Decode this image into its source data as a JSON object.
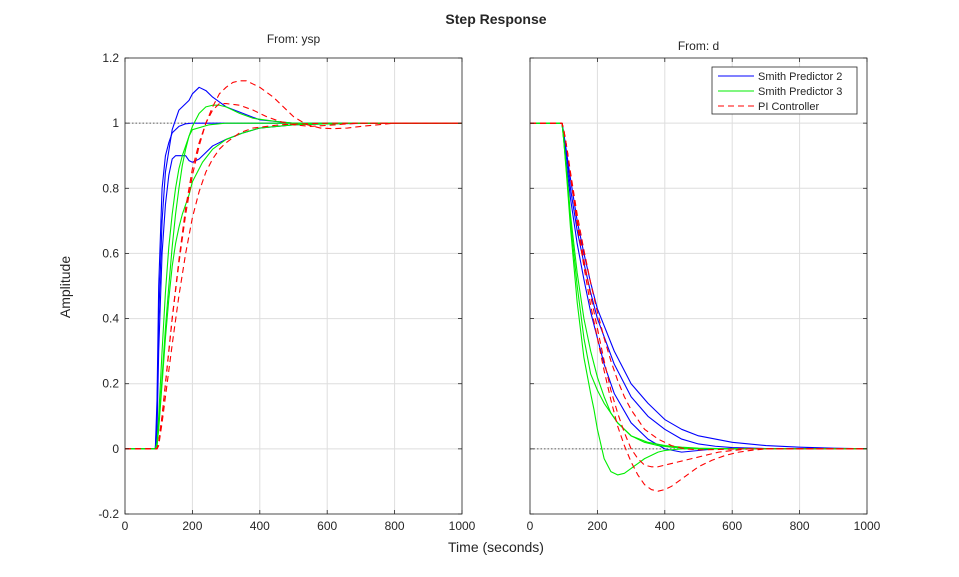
{
  "figure": {
    "title": "Step Response",
    "xlabel": "Time (seconds)",
    "ylabel": "Amplitude"
  },
  "colors": {
    "smith2": "#0000ff",
    "smith3": "#00ee00",
    "pi": "#ff0000",
    "grid": "#dedede",
    "axis": "#262626"
  },
  "chart_data": [
    {
      "type": "line",
      "panel": "left",
      "subtitle": "From: ysp",
      "xlim": [
        0,
        1000
      ],
      "ylim": [
        -0.2,
        1.2
      ],
      "xticks": [
        0,
        200,
        400,
        600,
        800,
        1000
      ],
      "yticks": [
        -0.2,
        0,
        0.2,
        0.4,
        0.6,
        0.8,
        1,
        1.2
      ],
      "grid": true,
      "reference_line": 1,
      "series": [
        {
          "group": "smith2",
          "style": "solid",
          "x": [
            0,
            90,
            95,
            100,
            110,
            120,
            130,
            140,
            160,
            180,
            200,
            300,
            400,
            600,
            1000
          ],
          "y": [
            0,
            0,
            0.15,
            0.5,
            0.8,
            0.9,
            0.94,
            0.97,
            0.99,
            0.998,
            1,
            1,
            1,
            1,
            1
          ]
        },
        {
          "group": "smith2",
          "style": "solid",
          "x": [
            0,
            90,
            95,
            100,
            110,
            120,
            140,
            160,
            180,
            190,
            200,
            220,
            240,
            260,
            300,
            350,
            400,
            500,
            600,
            1000
          ],
          "y": [
            0,
            0,
            0.1,
            0.4,
            0.7,
            0.85,
            0.98,
            1.04,
            1.06,
            1.07,
            1.09,
            1.11,
            1.1,
            1.08,
            1.05,
            1.03,
            1.01,
            1.0,
            1.0,
            1.0
          ]
        },
        {
          "group": "smith2",
          "style": "solid",
          "x": [
            0,
            90,
            95,
            100,
            110,
            120,
            130,
            140,
            150,
            160,
            180,
            190,
            200,
            210,
            220,
            240,
            260,
            300,
            350,
            400,
            450,
            500,
            600,
            800,
            1000
          ],
          "y": [
            0,
            0,
            0.05,
            0.3,
            0.6,
            0.75,
            0.84,
            0.89,
            0.9,
            0.9,
            0.9,
            0.885,
            0.88,
            0.885,
            0.89,
            0.91,
            0.93,
            0.95,
            0.97,
            0.985,
            0.99,
            0.995,
            0.998,
            1,
            1
          ]
        },
        {
          "group": "smith3",
          "style": "solid",
          "x": [
            0,
            90,
            95,
            100,
            110,
            120,
            130,
            140,
            150,
            160,
            170,
            180,
            190,
            200,
            250,
            300,
            400,
            500,
            600,
            1000
          ],
          "y": [
            0,
            0,
            0.02,
            0.1,
            0.3,
            0.48,
            0.62,
            0.72,
            0.8,
            0.86,
            0.9,
            0.93,
            0.96,
            0.98,
            0.995,
            1,
            1,
            1,
            1,
            1
          ]
        },
        {
          "group": "smith3",
          "style": "solid",
          "x": [
            0,
            90,
            95,
            100,
            110,
            120,
            130,
            140,
            150,
            160,
            170,
            180,
            190,
            200,
            220,
            240,
            260,
            280,
            300,
            340,
            380,
            450,
            500,
            600,
            700,
            1000
          ],
          "y": [
            0,
            0,
            0.01,
            0.07,
            0.22,
            0.37,
            0.5,
            0.62,
            0.72,
            0.8,
            0.87,
            0.92,
            0.96,
            0.99,
            1.03,
            1.05,
            1.055,
            1.055,
            1.05,
            1.03,
            1.015,
            1.005,
            1.0,
            0.998,
            1.0,
            1.0
          ]
        },
        {
          "group": "smith3",
          "style": "solid",
          "x": [
            0,
            90,
            95,
            100,
            110,
            120,
            130,
            140,
            150,
            160,
            170,
            180,
            190,
            200,
            230,
            260,
            300,
            350,
            400,
            450,
            500,
            600,
            700,
            1000
          ],
          "y": [
            0,
            0,
            0.01,
            0.06,
            0.2,
            0.34,
            0.46,
            0.56,
            0.63,
            0.68,
            0.72,
            0.75,
            0.78,
            0.82,
            0.88,
            0.92,
            0.95,
            0.97,
            0.985,
            0.99,
            0.995,
            0.998,
            1,
            1
          ]
        },
        {
          "group": "pi",
          "style": "dashed",
          "x": [
            0,
            95,
            100,
            110,
            120,
            130,
            140,
            160,
            180,
            200,
            220,
            240,
            260,
            280,
            300,
            340,
            380,
            420,
            460,
            500,
            550,
            600,
            650,
            700,
            750,
            800,
            1000
          ],
          "y": [
            0,
            0,
            0.02,
            0.1,
            0.2,
            0.3,
            0.4,
            0.57,
            0.72,
            0.84,
            0.93,
            1.0,
            1.04,
            1.06,
            1.06,
            1.055,
            1.04,
            1.02,
            1.005,
            0.995,
            0.99,
            0.993,
            0.997,
            1,
            1,
            1,
            1
          ]
        },
        {
          "group": "pi",
          "style": "dashed",
          "x": [
            0,
            95,
            100,
            110,
            120,
            130,
            140,
            160,
            180,
            200,
            220,
            240,
            260,
            280,
            300,
            320,
            340,
            360,
            380,
            400,
            420,
            440,
            460,
            480,
            500,
            540,
            580,
            620,
            660,
            700,
            750,
            800,
            1000
          ],
          "y": [
            0,
            0,
            0.02,
            0.1,
            0.2,
            0.3,
            0.4,
            0.58,
            0.74,
            0.86,
            0.94,
            1.0,
            1.05,
            1.09,
            1.11,
            1.125,
            1.13,
            1.13,
            1.12,
            1.11,
            1.095,
            1.08,
            1.06,
            1.04,
            1.02,
            0.995,
            0.985,
            0.983,
            0.985,
            0.99,
            0.995,
            1,
            1
          ]
        },
        {
          "group": "pi",
          "style": "dashed",
          "x": [
            0,
            95,
            100,
            110,
            120,
            130,
            140,
            160,
            180,
            200,
            220,
            240,
            260,
            280,
            300,
            340,
            380,
            420,
            460,
            500,
            560,
            620,
            700,
            1000
          ],
          "y": [
            0,
            0,
            0.01,
            0.08,
            0.16,
            0.24,
            0.32,
            0.47,
            0.6,
            0.71,
            0.79,
            0.85,
            0.89,
            0.92,
            0.94,
            0.97,
            0.985,
            0.99,
            0.995,
            0.997,
            0.999,
            1,
            1,
            1
          ]
        }
      ]
    },
    {
      "type": "line",
      "panel": "right",
      "subtitle": "From: d",
      "xlim": [
        0,
        1000
      ],
      "ylim": [
        -0.2,
        1.2
      ],
      "xticks": [
        0,
        200,
        400,
        600,
        800,
        1000
      ],
      "yticks": [
        -0.2,
        0,
        0.2,
        0.4,
        0.6,
        0.8,
        1,
        1.2
      ],
      "grid": true,
      "reference_line": 0,
      "series": [
        {
          "group": "smith2",
          "style": "solid",
          "x": [
            0,
            95,
            100,
            110,
            120,
            140,
            160,
            180,
            200,
            250,
            300,
            350,
            400,
            450,
            500,
            550,
            600,
            700,
            800,
            900,
            1000
          ],
          "y": [
            1,
            1,
            0.97,
            0.9,
            0.83,
            0.7,
            0.6,
            0.51,
            0.43,
            0.3,
            0.2,
            0.14,
            0.09,
            0.06,
            0.04,
            0.03,
            0.02,
            0.01,
            0.005,
            0.002,
            0
          ]
        },
        {
          "group": "smith2",
          "style": "solid",
          "x": [
            0,
            95,
            100,
            110,
            120,
            140,
            160,
            180,
            200,
            250,
            300,
            350,
            400,
            450,
            500,
            550,
            600,
            700,
            800,
            1000
          ],
          "y": [
            1,
            1,
            0.97,
            0.89,
            0.8,
            0.67,
            0.57,
            0.48,
            0.4,
            0.26,
            0.16,
            0.1,
            0.06,
            0.03,
            0.015,
            0.008,
            0.004,
            0.001,
            0,
            0
          ]
        },
        {
          "group": "smith2",
          "style": "solid",
          "x": [
            0,
            95,
            100,
            110,
            120,
            140,
            160,
            180,
            200,
            220,
            250,
            300,
            350,
            400,
            450,
            500,
            550,
            600,
            700,
            1000
          ],
          "y": [
            1,
            1,
            0.96,
            0.86,
            0.77,
            0.63,
            0.52,
            0.42,
            0.34,
            0.26,
            0.17,
            0.08,
            0.03,
            0.0,
            -0.01,
            -0.005,
            0.0,
            0.0,
            0,
            0
          ]
        },
        {
          "group": "smith3",
          "style": "solid",
          "x": [
            0,
            95,
            100,
            110,
            120,
            140,
            160,
            180,
            190,
            200,
            220,
            240,
            260,
            280,
            300,
            320,
            340,
            360,
            380,
            400,
            450,
            500,
            600,
            1000
          ],
          "y": [
            1,
            1,
            0.95,
            0.82,
            0.68,
            0.45,
            0.28,
            0.17,
            0.12,
            0.06,
            -0.03,
            -0.07,
            -0.08,
            -0.075,
            -0.06,
            -0.045,
            -0.03,
            -0.02,
            -0.01,
            -0.005,
            0,
            0,
            0,
            0
          ]
        },
        {
          "group": "smith3",
          "style": "solid",
          "x": [
            0,
            95,
            100,
            110,
            120,
            140,
            160,
            180,
            200,
            220,
            240,
            260,
            280,
            300,
            350,
            400,
            450,
            500,
            600,
            1000
          ],
          "y": [
            1,
            1,
            0.95,
            0.83,
            0.7,
            0.5,
            0.34,
            0.23,
            0.18,
            0.14,
            0.11,
            0.08,
            0.06,
            0.04,
            0.02,
            0.01,
            0.005,
            0.002,
            0,
            0
          ]
        },
        {
          "group": "smith3",
          "style": "solid",
          "x": [
            0,
            95,
            100,
            110,
            120,
            140,
            160,
            180,
            200,
            220,
            240,
            260,
            280,
            300,
            340,
            380,
            420,
            460,
            500,
            600,
            1000
          ],
          "y": [
            1,
            1,
            0.95,
            0.84,
            0.72,
            0.54,
            0.4,
            0.3,
            0.22,
            0.16,
            0.11,
            0.08,
            0.06,
            0.04,
            0.02,
            0.01,
            0.005,
            0.002,
            0.001,
            0,
            0
          ]
        },
        {
          "group": "pi",
          "style": "dashed",
          "x": [
            0,
            95,
            100,
            110,
            120,
            140,
            160,
            180,
            200,
            220,
            240,
            260,
            280,
            300,
            320,
            340,
            360,
            380,
            400,
            420,
            440,
            460,
            480,
            500,
            540,
            580,
            620,
            660,
            700,
            800,
            1000
          ],
          "y": [
            1,
            1,
            0.98,
            0.92,
            0.84,
            0.69,
            0.56,
            0.44,
            0.34,
            0.24,
            0.15,
            0.07,
            0.01,
            -0.04,
            -0.08,
            -0.11,
            -0.125,
            -0.13,
            -0.125,
            -0.115,
            -0.1,
            -0.085,
            -0.07,
            -0.055,
            -0.035,
            -0.02,
            -0.01,
            -0.004,
            0,
            0,
            0
          ]
        },
        {
          "group": "pi",
          "style": "dashed",
          "x": [
            0,
            95,
            100,
            110,
            120,
            140,
            160,
            180,
            200,
            220,
            240,
            260,
            280,
            300,
            320,
            340,
            360,
            380,
            400,
            440,
            480,
            520,
            560,
            600,
            650,
            700,
            800,
            1000
          ],
          "y": [
            1,
            1,
            0.98,
            0.92,
            0.84,
            0.7,
            0.58,
            0.47,
            0.37,
            0.27,
            0.18,
            0.11,
            0.05,
            0.0,
            -0.03,
            -0.05,
            -0.055,
            -0.055,
            -0.05,
            -0.04,
            -0.03,
            -0.02,
            -0.01,
            -0.005,
            0,
            0,
            0,
            0
          ]
        },
        {
          "group": "pi",
          "style": "dashed",
          "x": [
            0,
            95,
            100,
            110,
            120,
            140,
            160,
            180,
            200,
            220,
            240,
            260,
            280,
            300,
            340,
            380,
            420,
            460,
            500,
            560,
            620,
            700,
            800,
            1000
          ],
          "y": [
            1,
            1,
            0.98,
            0.92,
            0.85,
            0.72,
            0.61,
            0.51,
            0.42,
            0.34,
            0.27,
            0.21,
            0.16,
            0.12,
            0.06,
            0.03,
            0.01,
            0.0,
            -0.003,
            -0.002,
            0,
            0,
            0,
            0
          ]
        }
      ]
    }
  ],
  "legend": {
    "placement": "top-right",
    "items": [
      {
        "group": "smith2",
        "label": "Smith Predictor 2",
        "style": "solid"
      },
      {
        "group": "smith3",
        "label": "Smith Predictor 3",
        "style": "solid"
      },
      {
        "group": "pi",
        "label": "PI Controller",
        "style": "dashed"
      }
    ]
  }
}
